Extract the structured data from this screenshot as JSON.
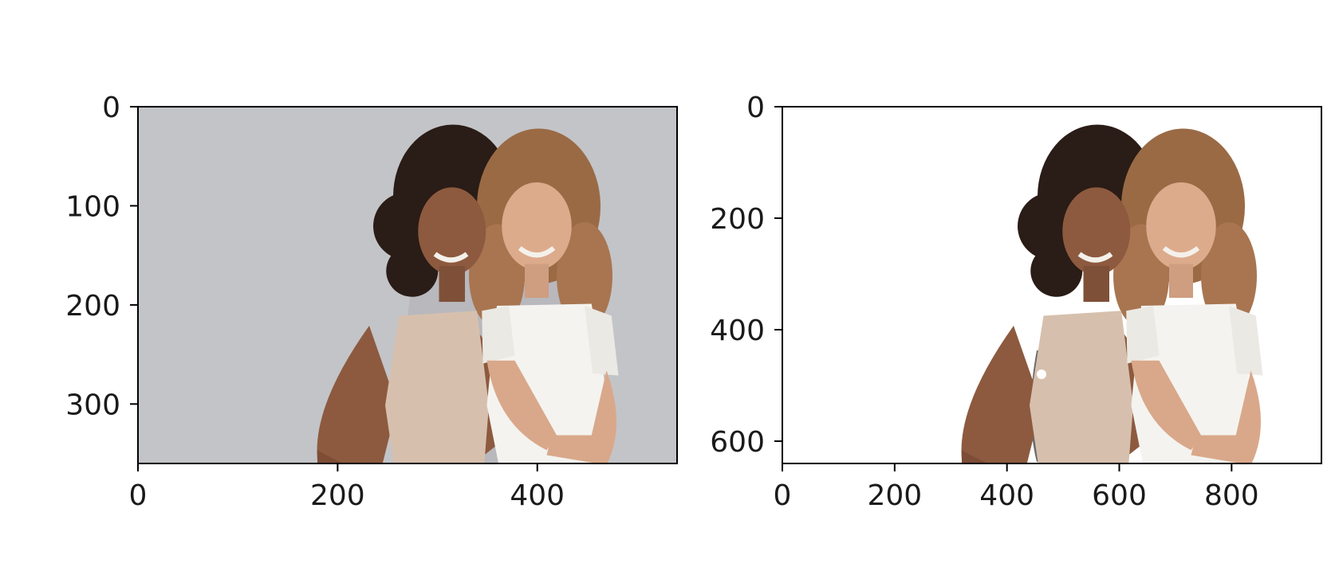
{
  "chart_data": [
    {
      "type": "image",
      "title": "",
      "xlabel": "",
      "ylabel": "",
      "xlim": [
        0,
        540
      ],
      "ylim": [
        360,
        0
      ],
      "xticks": [
        0,
        200,
        400
      ],
      "yticks": [
        0,
        100,
        200,
        300
      ],
      "content": "photo of two smiling women standing back to back on a gray background",
      "colors": {
        "background": "#c3c4c8",
        "tank_top": "#d6c0ad",
        "tshirt": "#f4f3ef",
        "jeans_dark": "#5d7ea6",
        "jeans_light": "#a9c2d8",
        "hair_dark": "#2a1c16",
        "hair_light": "#9a6a45",
        "skin_dark": "#8d5a3f",
        "skin_light": "#d9a88a"
      }
    },
    {
      "type": "image",
      "title": "",
      "xlabel": "",
      "ylabel": "",
      "xlim": [
        0,
        960
      ],
      "ylim": [
        640,
        0
      ],
      "xticks": [
        0,
        200,
        400,
        600,
        800
      ],
      "yticks": [
        200,
        400,
        600
      ],
      "extra_ytick_labels": [
        0
      ],
      "content": "same photo with the background removed (segmentation cut-out on white)",
      "colors": {
        "background": "#ffffff",
        "artifact": "#6a6a6a"
      }
    }
  ]
}
